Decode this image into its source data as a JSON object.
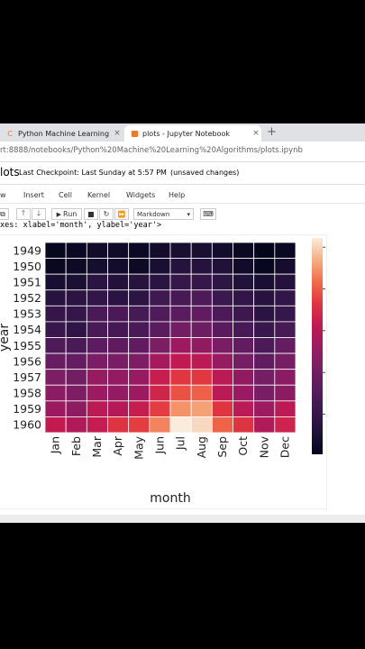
{
  "browser": {
    "tabs": [
      {
        "label": "Python Machine Learning Algori",
        "close": "×",
        "icon": "jupyter-favicon"
      },
      {
        "label": "plots - Jupyter Notebook",
        "close": "×",
        "icon": "notebook-favicon"
      }
    ],
    "new_tab": "+",
    "url": "rt:8888/notebooks/Python%20Machine%20Learning%20Algorithms/plots.ipynb"
  },
  "notebook": {
    "name": "lots",
    "checkpoint": "Last Checkpoint: Last Sunday at 5:57 PM",
    "unsaved": "(unsaved changes)"
  },
  "menu": [
    "w",
    "Insert",
    "Cell",
    "Kernel",
    "Widgets",
    "Help"
  ],
  "toolbar": {
    "run_label": "Run",
    "cell_type": "Markdown"
  },
  "output_text": "xes: xlabel='month', ylabel='year'>",
  "colors": {
    "rocket_low": "#03051a",
    "rocket_mid": "#cb1b4f",
    "rocket_high": "#faebdd"
  },
  "chart_data": {
    "type": "heatmap",
    "xlabel": "month",
    "ylabel": "year",
    "x": [
      "Jan",
      "Feb",
      "Mar",
      "Apr",
      "May",
      "Jun",
      "Jul",
      "Aug",
      "Sep",
      "Oct",
      "Nov",
      "Dec"
    ],
    "y": [
      "1949",
      "1950",
      "1951",
      "1952",
      "1953",
      "1954",
      "1955",
      "1956",
      "1957",
      "1958",
      "1959",
      "1960"
    ],
    "values": [
      [
        112,
        118,
        132,
        129,
        121,
        135,
        148,
        148,
        136,
        119,
        104,
        118
      ],
      [
        115,
        126,
        141,
        135,
        125,
        149,
        170,
        170,
        158,
        133,
        114,
        140
      ],
      [
        145,
        150,
        178,
        163,
        172,
        178,
        199,
        199,
        184,
        162,
        146,
        166
      ],
      [
        171,
        180,
        193,
        181,
        183,
        218,
        230,
        242,
        209,
        191,
        172,
        194
      ],
      [
        196,
        196,
        236,
        235,
        229,
        243,
        264,
        272,
        237,
        211,
        180,
        201
      ],
      [
        204,
        188,
        235,
        227,
        234,
        264,
        302,
        293,
        259,
        229,
        203,
        229
      ],
      [
        242,
        233,
        267,
        269,
        270,
        315,
        364,
        347,
        312,
        274,
        237,
        278
      ],
      [
        284,
        277,
        317,
        313,
        318,
        374,
        413,
        405,
        355,
        306,
        271,
        306
      ],
      [
        315,
        301,
        356,
        348,
        355,
        422,
        465,
        467,
        404,
        347,
        305,
        336
      ],
      [
        340,
        318,
        362,
        348,
        363,
        435,
        491,
        505,
        404,
        359,
        310,
        337
      ],
      [
        360,
        342,
        406,
        396,
        420,
        472,
        548,
        559,
        463,
        407,
        362,
        405
      ],
      [
        417,
        391,
        419,
        461,
        472,
        535,
        622,
        606,
        508,
        461,
        390,
        432
      ]
    ],
    "vmin": 104,
    "vmax": 622,
    "colorbar_ticks": [
      200,
      300,
      400,
      500,
      600
    ],
    "grid": true,
    "linecolor": "white"
  }
}
